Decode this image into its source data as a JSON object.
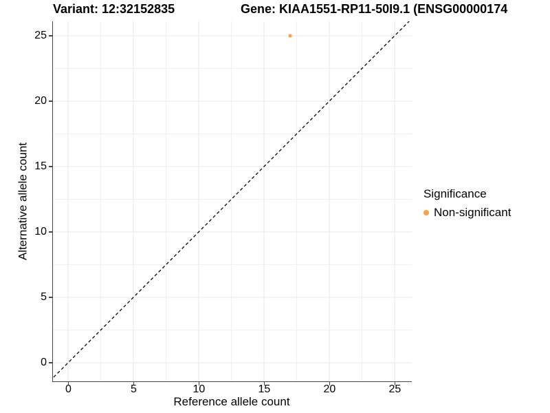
{
  "figure": {
    "title_left": "Variant: 12:32152835",
    "title_right": "Gene: KIAA1551-RP11-50I9.1 (ENSG00000174",
    "background": "#ffffff"
  },
  "chart_data": {
    "type": "scatter",
    "title_left": "Variant: 12:32152835",
    "title_right": "Gene: KIAA1551-RP11-50I9.1 (ENSG00000174",
    "xlabel": "Reference allele count",
    "ylabel": "Alternative allele count",
    "xlim": [
      -1.2,
      26.3
    ],
    "ylim": [
      -1.4,
      26.1
    ],
    "x_ticks": [
      0,
      5,
      10,
      15,
      20,
      25
    ],
    "y_ticks": [
      0,
      5,
      10,
      15,
      20,
      25
    ],
    "grid": "major+minor",
    "series": [
      {
        "name": "Non-significant",
        "color": "#F8A145",
        "points": [
          {
            "x": 17,
            "y": 25
          }
        ]
      }
    ],
    "reference_line": {
      "type": "identity y=x",
      "style": "dashed",
      "color": "#000000"
    },
    "legend": {
      "title": "Significance",
      "position": "right",
      "items": [
        {
          "label": "Non-significant",
          "color": "#F8A145"
        }
      ]
    },
    "colors": {
      "grid_major": "#e9e9e9",
      "grid_minor": "#f1f1f1",
      "axis_line": "#454545",
      "tick_text": "#000000",
      "point": "#F8A145"
    }
  }
}
